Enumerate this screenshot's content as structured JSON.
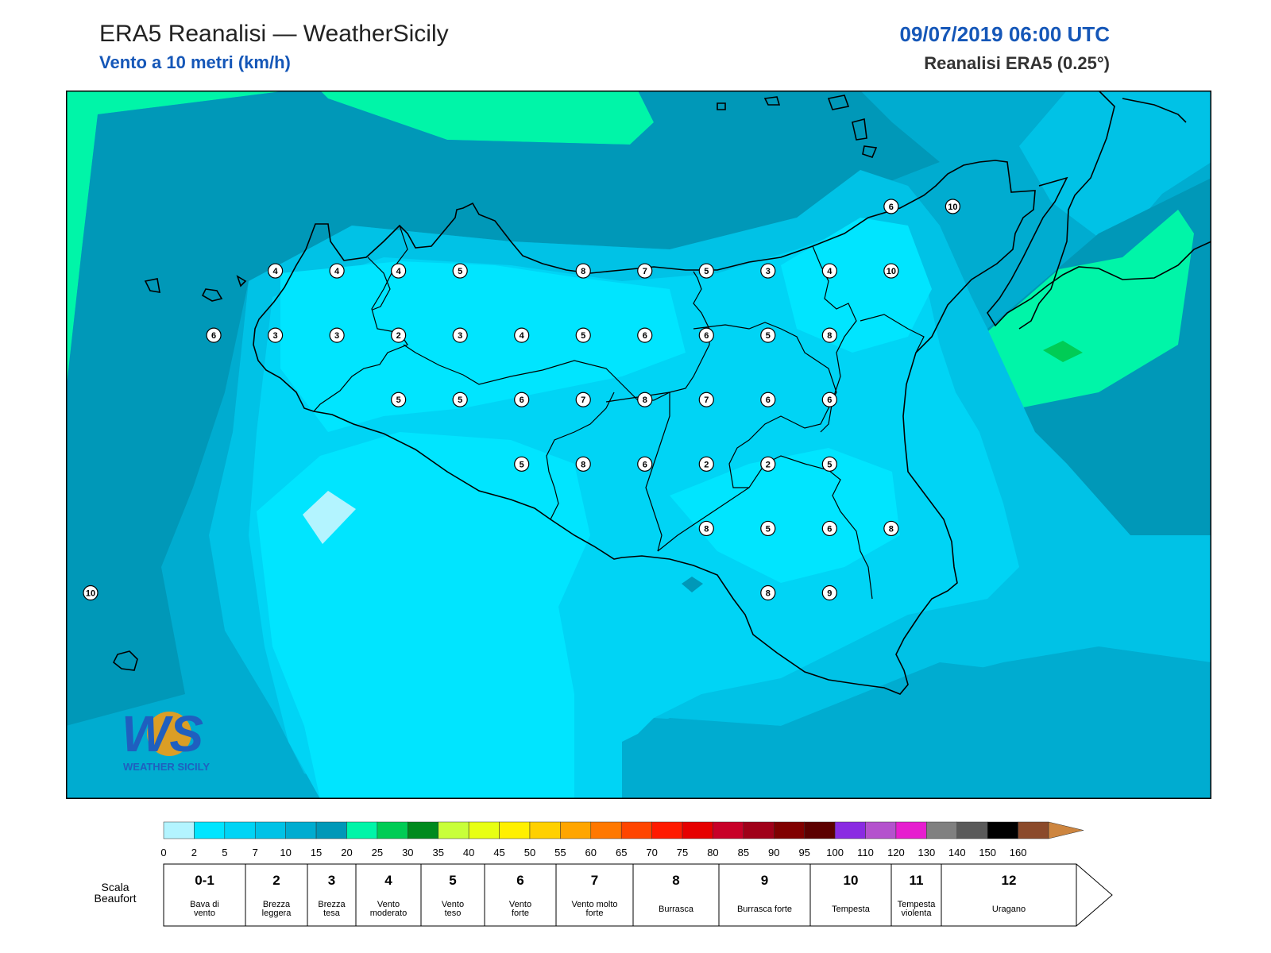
{
  "header": {
    "title": "ERA5 Reanalisi — WeatherSicily",
    "subtitle": "Vento a 10 metri (km/h)",
    "datetime": "09/07/2019 06:00 UTC",
    "model": "Reanalisi ERA5 (0.25°)"
  },
  "logo": {
    "letters": "WS",
    "text": "WEATHER SICILY"
  },
  "colorbar": {
    "ticks": [
      "0",
      "2",
      "5",
      "7",
      "10",
      "15",
      "20",
      "25",
      "30",
      "35",
      "40",
      "45",
      "50",
      "55",
      "60",
      "65",
      "70",
      "75",
      "80",
      "85",
      "90",
      "95",
      "100",
      "110",
      "120",
      "130",
      "140",
      "150",
      "160"
    ],
    "colors": [
      "#b3f4ff",
      "#00e5ff",
      "#00d4f5",
      "#00c2e6",
      "#00acd0",
      "#0098b8",
      "#00f5a8",
      "#00cc55",
      "#008a1e",
      "#c8ff3a",
      "#e8ff14",
      "#fff000",
      "#ffd000",
      "#ffa500",
      "#ff7800",
      "#ff4500",
      "#ff1a00",
      "#e60000",
      "#c80028",
      "#a00019",
      "#800000",
      "#5c0000",
      "#8a2be2",
      "#b452cd",
      "#e61ecf",
      "#808080",
      "#5a5a5a",
      "#000000",
      "#8b4a2b",
      "#cd853f"
    ]
  },
  "beaufort": {
    "label": "Scala Beaufort",
    "cells": [
      {
        "num": "0-1",
        "desc": "Bava di vento"
      },
      {
        "num": "2",
        "desc": "Brezza leggera"
      },
      {
        "num": "3",
        "desc": "Brezza tesa"
      },
      {
        "num": "4",
        "desc": "Vento moderato"
      },
      {
        "num": "5",
        "desc": "Vento teso"
      },
      {
        "num": "6",
        "desc": "Vento forte"
      },
      {
        "num": "7",
        "desc": "Vento molto forte"
      },
      {
        "num": "8",
        "desc": "Burrasca"
      },
      {
        "num": "9",
        "desc": "Burrasca forte"
      },
      {
        "num": "10",
        "desc": "Tempesta"
      },
      {
        "num": "11",
        "desc": "Tempesta violenta"
      },
      {
        "num": "12",
        "desc": "Uragano"
      }
    ]
  },
  "stations": [
    {
      "lon": 12.75,
      "lat": 38.25,
      "v": "4"
    },
    {
      "lon": 13.0,
      "lat": 38.25,
      "v": "4"
    },
    {
      "lon": 13.25,
      "lat": 38.25,
      "v": "4"
    },
    {
      "lon": 13.5,
      "lat": 38.25,
      "v": "5"
    },
    {
      "lon": 14.0,
      "lat": 38.25,
      "v": "8"
    },
    {
      "lon": 14.25,
      "lat": 38.25,
      "v": "7"
    },
    {
      "lon": 14.5,
      "lat": 38.25,
      "v": "5"
    },
    {
      "lon": 14.75,
      "lat": 38.25,
      "v": "3"
    },
    {
      "lon": 15.0,
      "lat": 38.25,
      "v": "4"
    },
    {
      "lon": 15.25,
      "lat": 38.25,
      "v": "10"
    },
    {
      "lon": 15.25,
      "lat": 38.5,
      "v": "6"
    },
    {
      "lon": 15.5,
      "lat": 38.5,
      "v": "10"
    },
    {
      "lon": 12.5,
      "lat": 38.0,
      "v": "6"
    },
    {
      "lon": 12.75,
      "lat": 38.0,
      "v": "3"
    },
    {
      "lon": 13.0,
      "lat": 38.0,
      "v": "3"
    },
    {
      "lon": 13.25,
      "lat": 38.0,
      "v": "2"
    },
    {
      "lon": 13.5,
      "lat": 38.0,
      "v": "3"
    },
    {
      "lon": 13.75,
      "lat": 38.0,
      "v": "4"
    },
    {
      "lon": 14.0,
      "lat": 38.0,
      "v": "5"
    },
    {
      "lon": 14.25,
      "lat": 38.0,
      "v": "6"
    },
    {
      "lon": 14.5,
      "lat": 38.0,
      "v": "6"
    },
    {
      "lon": 14.75,
      "lat": 38.0,
      "v": "5"
    },
    {
      "lon": 15.0,
      "lat": 38.0,
      "v": "8"
    },
    {
      "lon": 13.25,
      "lat": 37.75,
      "v": "5"
    },
    {
      "lon": 13.5,
      "lat": 37.75,
      "v": "5"
    },
    {
      "lon": 13.75,
      "lat": 37.75,
      "v": "6"
    },
    {
      "lon": 14.0,
      "lat": 37.75,
      "v": "7"
    },
    {
      "lon": 14.25,
      "lat": 37.75,
      "v": "8"
    },
    {
      "lon": 14.5,
      "lat": 37.75,
      "v": "7"
    },
    {
      "lon": 14.75,
      "lat": 37.75,
      "v": "6"
    },
    {
      "lon": 15.0,
      "lat": 37.75,
      "v": "6"
    },
    {
      "lon": 13.75,
      "lat": 37.5,
      "v": "5"
    },
    {
      "lon": 14.0,
      "lat": 37.5,
      "v": "8"
    },
    {
      "lon": 14.25,
      "lat": 37.5,
      "v": "6"
    },
    {
      "lon": 14.5,
      "lat": 37.5,
      "v": "2"
    },
    {
      "lon": 14.75,
      "lat": 37.5,
      "v": "2"
    },
    {
      "lon": 15.0,
      "lat": 37.5,
      "v": "5"
    },
    {
      "lon": 14.5,
      "lat": 37.25,
      "v": "8"
    },
    {
      "lon": 14.75,
      "lat": 37.25,
      "v": "5"
    },
    {
      "lon": 15.0,
      "lat": 37.25,
      "v": "6"
    },
    {
      "lon": 15.25,
      "lat": 37.25,
      "v": "8"
    },
    {
      "lon": 14.75,
      "lat": 37.0,
      "v": "8"
    },
    {
      "lon": 15.0,
      "lat": 37.0,
      "v": "9"
    },
    {
      "lon": 12.0,
      "lat": 37.0,
      "v": "10"
    }
  ]
}
